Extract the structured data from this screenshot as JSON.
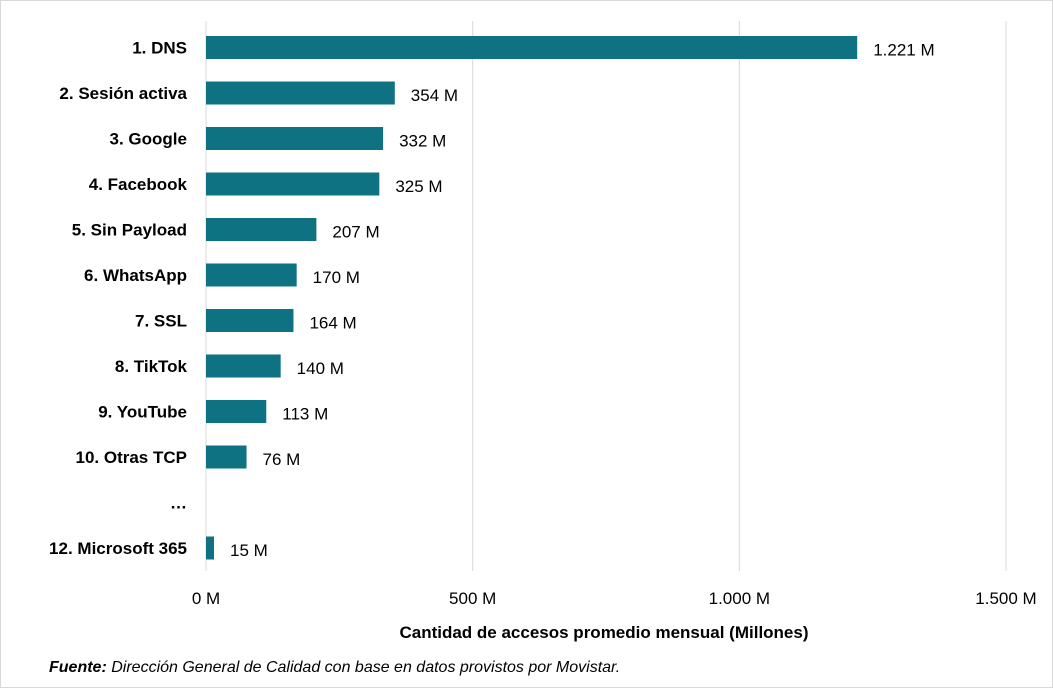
{
  "chart_data": {
    "type": "bar",
    "orientation": "horizontal",
    "categories": [
      "1. DNS",
      "2. Sesión activa",
      "3. Google",
      "4. Facebook",
      "5. Sin Payload",
      "6. WhatsApp",
      "7. SSL",
      "8. TikTok",
      "9. YouTube",
      "10. Otras TCP",
      "…",
      "12. Microsoft 365"
    ],
    "values": [
      1221,
      354,
      332,
      325,
      207,
      170,
      164,
      140,
      113,
      76,
      null,
      15
    ],
    "value_labels": [
      "1.221 M",
      "354 M",
      "332 M",
      "325 M",
      "207 M",
      "170 M",
      "164 M",
      "140 M",
      "113 M",
      "76 M",
      "",
      "15 M"
    ],
    "xlabel": "Cantidad de accesos promedio mensual (Millones)",
    "ylabel": "",
    "xlim": [
      0,
      1500
    ],
    "x_ticks": [
      0,
      500,
      1000,
      1500
    ],
    "x_tick_labels": [
      "0 M",
      "500 M",
      "1.000 M",
      "1.500 M"
    ],
    "grid": "vertical",
    "bar_color": "#0e7282",
    "grid_color": "#d9d9d9"
  },
  "source": {
    "label": "Fuente:",
    "text": " Dirección General de Calidad con base en datos provistos por Movistar."
  }
}
